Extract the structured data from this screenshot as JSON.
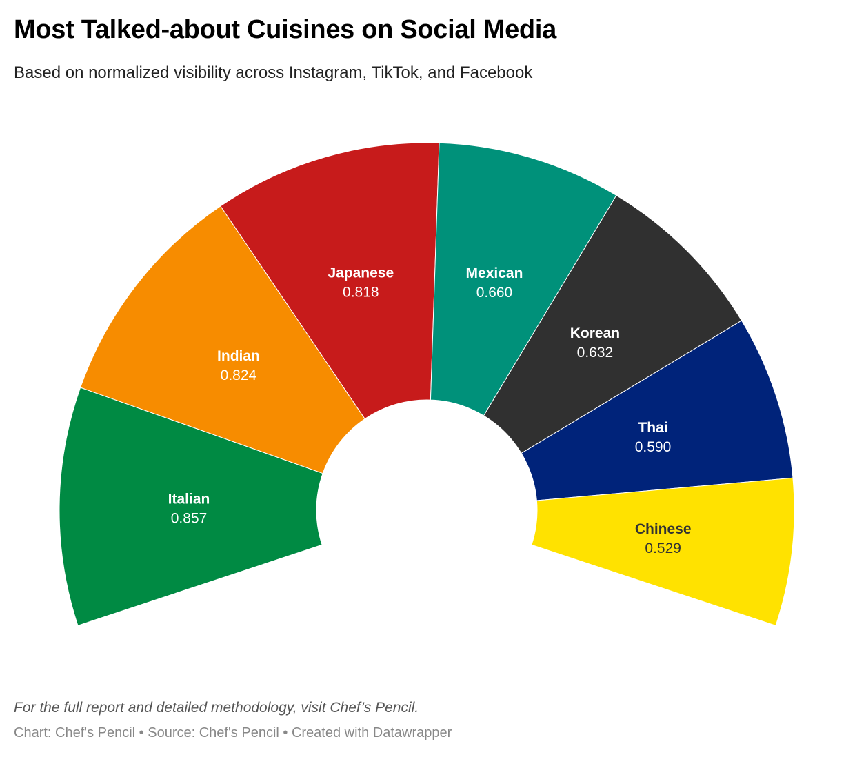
{
  "header": {
    "title": "Most Talked-about Cuisines on Social Media",
    "subtitle": "Based on normalized visibility across Instagram, TikTok, and Facebook"
  },
  "chart_data": {
    "type": "pie",
    "variant": "half-donut",
    "categories": [
      "Italian",
      "Indian",
      "Japanese",
      "Mexican",
      "Korean",
      "Thai",
      "Chinese"
    ],
    "values": [
      0.857,
      0.824,
      0.818,
      0.66,
      0.632,
      0.59,
      0.529
    ],
    "value_labels": [
      "0.857",
      "0.824",
      "0.818",
      "0.660",
      "0.632",
      "0.590",
      "0.529"
    ],
    "colors": [
      "#008a43",
      "#f78c00",
      "#c71b1b",
      "#00917a",
      "#303030",
      "#00237a",
      "#ffe200"
    ],
    "label_colors": [
      "#ffffff",
      "#ffffff",
      "#ffffff",
      "#ffffff",
      "#ffffff",
      "#ffffff",
      "#333333"
    ],
    "legend": "none"
  },
  "footer": {
    "note": "For the full report and detailed methodology, visit Chef’s Pencil.",
    "chart_credit": "Chart: Chef's Pencil",
    "source": "Source: Chef's Pencil",
    "created_with": "Created with Datawrapper",
    "separator": " • "
  }
}
